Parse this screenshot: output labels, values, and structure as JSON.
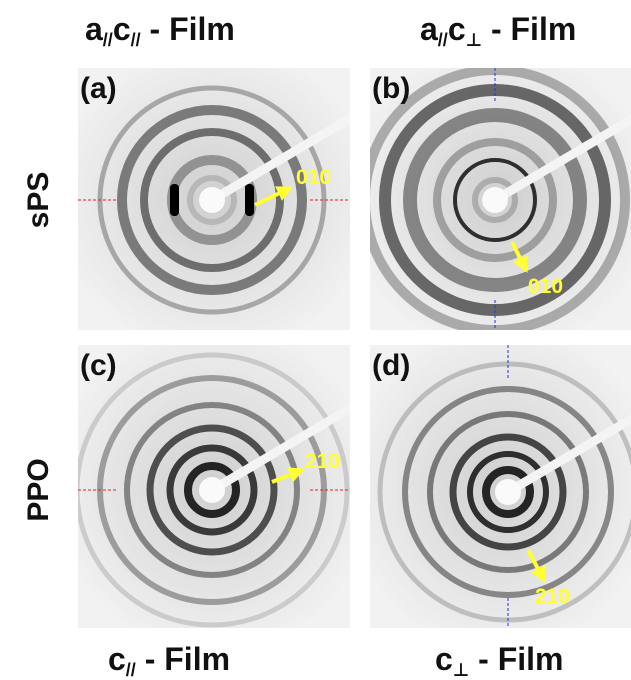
{
  "column_titles": [
    [
      "a",
      "//",
      "c",
      "//",
      " -  Film"
    ],
    [
      "a",
      "//",
      "c",
      "⊥",
      " - Film"
    ]
  ],
  "column_footers": [
    [
      "c",
      "//",
      " - Film"
    ],
    [
      "c",
      "⊥",
      " - Film"
    ]
  ],
  "rows": [
    "sPS",
    "PPO"
  ],
  "panels": [
    {
      "label": "(a)",
      "annotation": "010"
    },
    {
      "label": "(b)",
      "annotation": "010"
    },
    {
      "label": "(c)",
      "annotation": "210"
    },
    {
      "label": "(d)",
      "annotation": "210"
    }
  ]
}
